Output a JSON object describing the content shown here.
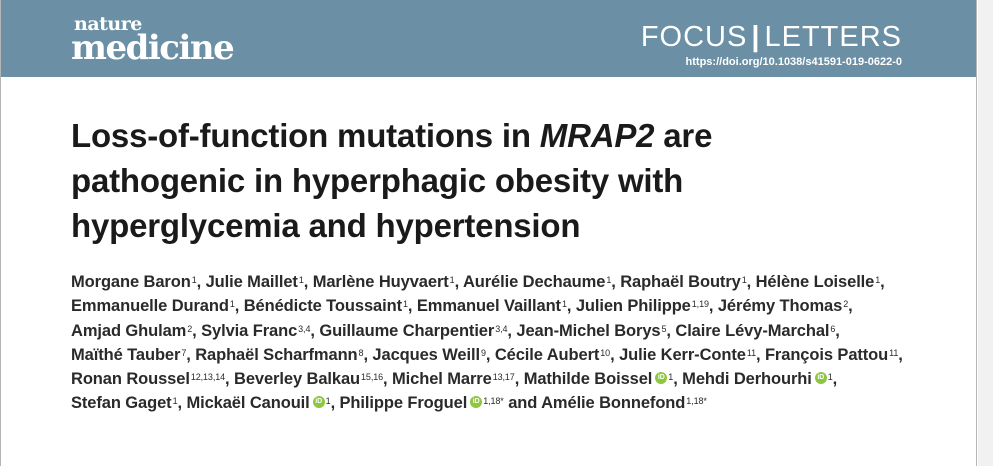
{
  "journal": {
    "logo_top": "nature",
    "logo_bottom": "medicine",
    "section_left": "FOCUS",
    "section_separator": "|",
    "section_right": "LETTERS",
    "doi": "https://doi.org/10.1038/s41591-019-0622-0"
  },
  "article": {
    "title_line1_before": "Loss-of-function mutations in ",
    "title_gene": "MRAP2",
    "title_line1_after": " are",
    "title_line2": "pathogenic in hyperphagic obesity with",
    "title_line3": "hyperglycemia and hypertension"
  },
  "authors": [
    {
      "name": "Morgane Baron",
      "aff": "1",
      "orcid": false
    },
    {
      "name": "Julie Maillet",
      "aff": "1",
      "orcid": false
    },
    {
      "name": "Marlène Huyvaert",
      "aff": "1",
      "orcid": false
    },
    {
      "name": "Aurélie Dechaume",
      "aff": "1",
      "orcid": false
    },
    {
      "name": "Raphaël Boutry",
      "aff": "1",
      "orcid": false
    },
    {
      "name": "Hélène Loiselle",
      "aff": "1",
      "orcid": false
    },
    {
      "name": "Emmanuelle Durand",
      "aff": "1",
      "orcid": false
    },
    {
      "name": "Bénédicte Toussaint",
      "aff": "1",
      "orcid": false
    },
    {
      "name": "Emmanuel Vaillant",
      "aff": "1",
      "orcid": false
    },
    {
      "name": "Julien Philippe",
      "aff": "1,19",
      "orcid": false
    },
    {
      "name": "Jérémy Thomas",
      "aff": "2",
      "orcid": false
    },
    {
      "name": "Amjad Ghulam",
      "aff": "2",
      "orcid": false
    },
    {
      "name": "Sylvia Franc",
      "aff": "3,4",
      "orcid": false
    },
    {
      "name": "Guillaume Charpentier",
      "aff": "3,4",
      "orcid": false
    },
    {
      "name": "Jean-Michel Borys",
      "aff": "5",
      "orcid": false
    },
    {
      "name": "Claire Lévy-Marchal",
      "aff": "6",
      "orcid": false
    },
    {
      "name": "Maïthé Tauber",
      "aff": "7",
      "orcid": false
    },
    {
      "name": "Raphaël Scharfmann",
      "aff": "8",
      "orcid": false
    },
    {
      "name": "Jacques Weill",
      "aff": "9",
      "orcid": false
    },
    {
      "name": "Cécile Aubert",
      "aff": "10",
      "orcid": false
    },
    {
      "name": "Julie Kerr-Conte",
      "aff": "11",
      "orcid": false
    },
    {
      "name": "François Pattou",
      "aff": "11",
      "orcid": false
    },
    {
      "name": "Ronan Roussel",
      "aff": "12,13,14",
      "orcid": false
    },
    {
      "name": "Beverley Balkau",
      "aff": "15,16",
      "orcid": false
    },
    {
      "name": "Michel Marre",
      "aff": "13,17",
      "orcid": false
    },
    {
      "name": "Mathilde Boissel",
      "aff": "1",
      "orcid": true
    },
    {
      "name": "Mehdi Derhourhi",
      "aff": "1",
      "orcid": true
    },
    {
      "name": "Stefan Gaget",
      "aff": "1",
      "orcid": false
    },
    {
      "name": "Mickaël Canouil",
      "aff": "1",
      "orcid": true
    },
    {
      "name": "Philippe Froguel",
      "aff": "1,18*",
      "orcid": true
    },
    {
      "name": "Amélie Bonnefond",
      "aff": "1,18*",
      "orcid": false
    }
  ],
  "final_conjunction": "and",
  "orcid_glyph": "iD",
  "colors": {
    "header_bg": "#6b8fa4",
    "orcid_green": "#8dc63f",
    "text": "#1a1a1a"
  }
}
